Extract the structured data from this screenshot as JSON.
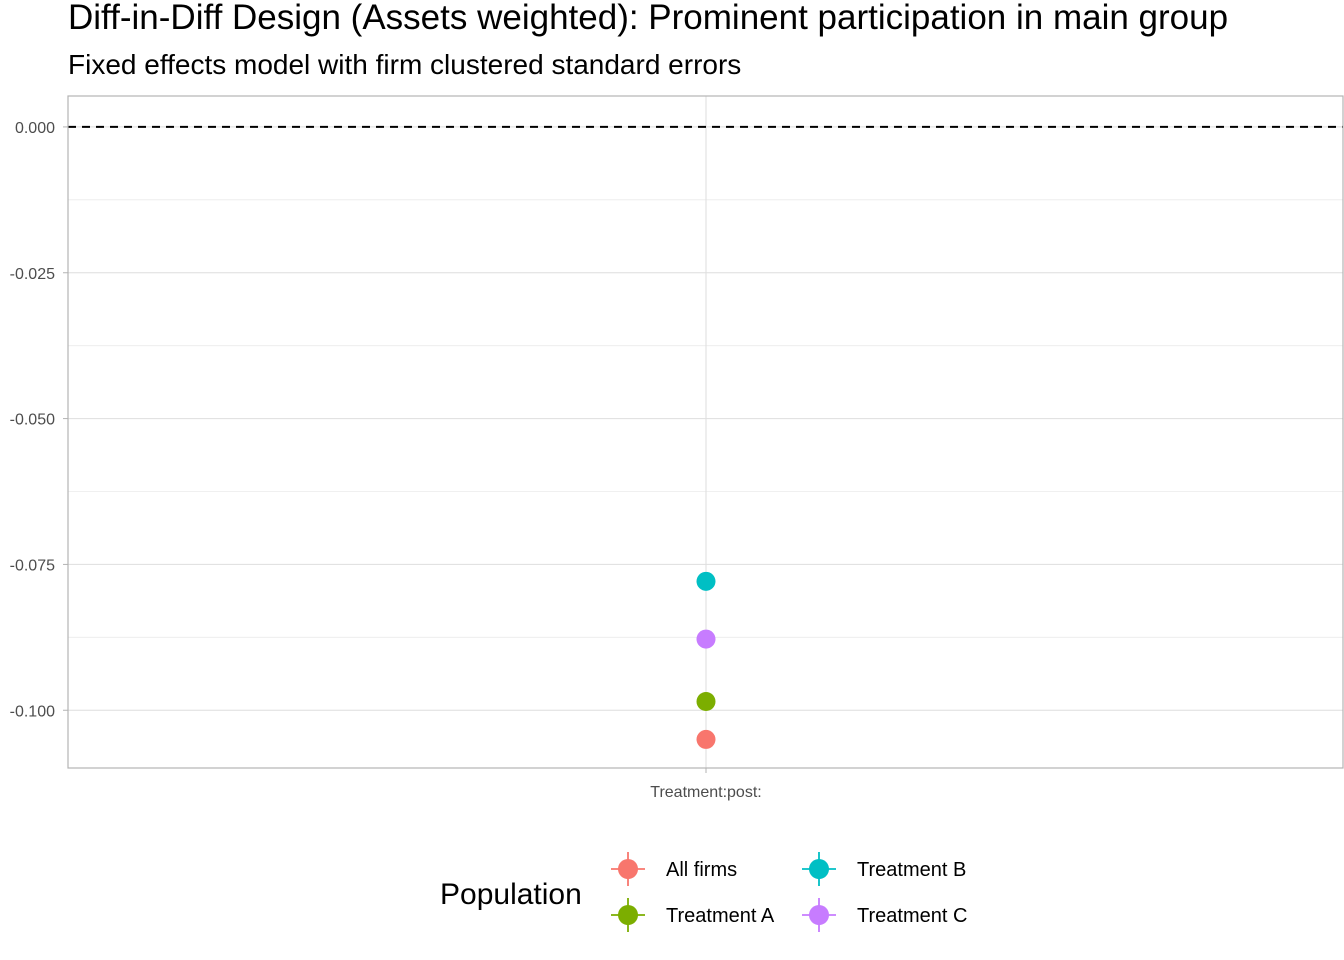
{
  "chart_data": {
    "type": "scatter",
    "title": "Diff-in-Diff Design (Assets weighted): Prominent participation in main group",
    "subtitle": "Fixed effects model with firm clustered standard errors",
    "xlabel": "",
    "ylabel": "",
    "categories": [
      "Treatment:post:"
    ],
    "ylim": [
      -0.1099,
      0.0053
    ],
    "y_ticks": [
      "0.000",
      "-0.025",
      "-0.050",
      "-0.075",
      "-0.100"
    ],
    "grid": true,
    "reference_line": {
      "y": 0,
      "style": "dashed"
    },
    "legend": {
      "title": "Population",
      "placement": "bottom"
    },
    "series": [
      {
        "name": "All firms",
        "color": "#F8766D",
        "values": [
          -0.105
        ]
      },
      {
        "name": "Treatment A",
        "color": "#7CAE00",
        "values": [
          -0.0985
        ]
      },
      {
        "name": "Treatment B",
        "color": "#00BFC4",
        "values": [
          -0.0779
        ]
      },
      {
        "name": "Treatment C",
        "color": "#C77CFF",
        "values": [
          -0.0878
        ]
      }
    ]
  }
}
